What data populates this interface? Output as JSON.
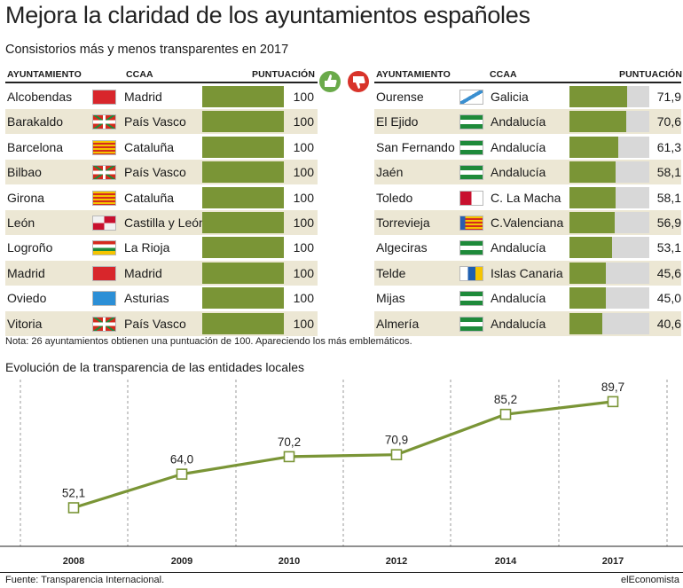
{
  "title": "Mejora la claridad de los ayuntamientos españoles",
  "subtitle": "Consistorios más y menos transparentes en 2017",
  "table_headers": {
    "ayuntamiento": "AYUNTAMIENTO",
    "ccaa": "CCAA",
    "puntuacion": "PUNTUACIÓN"
  },
  "chart_data": [
    {
      "type": "table",
      "title": "Consistorios más transparentes",
      "columns": [
        "AYUNTAMIENTO",
        "CCAA",
        "PUNTUACIÓN"
      ],
      "max": 100,
      "rows": [
        {
          "city": "Alcobendas",
          "ccaa": "Madrid",
          "flag": "madrid-flag",
          "score": 100,
          "label": "100"
        },
        {
          "city": "Barakaldo",
          "ccaa": "País Vasco",
          "flag": "basque-flag",
          "score": 100,
          "label": "100"
        },
        {
          "city": "Barcelona",
          "ccaa": "Cataluña",
          "flag": "catalonia-flag",
          "score": 100,
          "label": "100"
        },
        {
          "city": "Bilbao",
          "ccaa": "País Vasco",
          "flag": "basque-flag",
          "score": 100,
          "label": "100"
        },
        {
          "city": "Girona",
          "ccaa": "Cataluña",
          "flag": "catalonia-flag",
          "score": 100,
          "label": "100"
        },
        {
          "city": "León",
          "ccaa": "Castilla y León",
          "flag": "castilla-leon-flag",
          "score": 100,
          "label": "100"
        },
        {
          "city": "Logroño",
          "ccaa": "La Rioja",
          "flag": "la-rioja-flag",
          "score": 100,
          "label": "100"
        },
        {
          "city": "Madrid",
          "ccaa": "Madrid",
          "flag": "madrid-flag",
          "score": 100,
          "label": "100"
        },
        {
          "city": "Oviedo",
          "ccaa": "Asturias",
          "flag": "asturias-flag",
          "score": 100,
          "label": "100"
        },
        {
          "city": "Vitoria",
          "ccaa": "País Vasco",
          "flag": "basque-flag",
          "score": 100,
          "label": "100"
        }
      ]
    },
    {
      "type": "table",
      "title": "Consistorios menos transparentes",
      "columns": [
        "AYUNTAMIENTO",
        "CCAA",
        "PUNTUACIÓN"
      ],
      "max": 100,
      "rows": [
        {
          "city": "Ourense",
          "ccaa": "Galicia",
          "flag": "galicia-flag",
          "score": 71.9,
          "label": "71,9"
        },
        {
          "city": "El Ejido",
          "ccaa": "Andalucía",
          "flag": "andalucia-flag",
          "score": 70.6,
          "label": "70,6"
        },
        {
          "city": "San Fernando",
          "ccaa": "Andalucía",
          "flag": "andalucia-flag",
          "score": 61.3,
          "label": "61,3"
        },
        {
          "city": "Jaén",
          "ccaa": "Andalucía",
          "flag": "andalucia-flag",
          "score": 58.1,
          "label": "58,1"
        },
        {
          "city": "Toledo",
          "ccaa": "C. La Macha",
          "flag": "castilla-la-mancha-flag",
          "score": 58.1,
          "label": "58,1"
        },
        {
          "city": "Torrevieja",
          "ccaa": "C.Valenciana",
          "flag": "valencia-flag",
          "score": 56.9,
          "label": "56,9"
        },
        {
          "city": "Algeciras",
          "ccaa": "Andalucía",
          "flag": "andalucia-flag",
          "score": 53.1,
          "label": "53,1"
        },
        {
          "city": "Telde",
          "ccaa": "Islas Canaria",
          "flag": "canarias-flag",
          "score": 45.6,
          "label": "45,6"
        },
        {
          "city": "Mijas",
          "ccaa": "Andalucía",
          "flag": "andalucia-flag",
          "score": 45.0,
          "label": "45,0"
        },
        {
          "city": "Almería",
          "ccaa": "Andalucía",
          "flag": "andalucia-flag",
          "score": 40.6,
          "label": "40,6"
        }
      ]
    },
    {
      "type": "line",
      "title": "Evolución de la transparencia de las entidades locales",
      "x": [
        "2008",
        "2009",
        "2010",
        "2012",
        "2014",
        "2017"
      ],
      "y": [
        52.1,
        64.0,
        70.2,
        70.9,
        85.2,
        89.7
      ],
      "labels": [
        "52,1",
        "64,0",
        "70,2",
        "70,9",
        "85,2",
        "89,7"
      ],
      "ylim": [
        40,
        95
      ],
      "grid": "vertical-dashed",
      "legend": "none"
    }
  ],
  "icons": {
    "best": "thumbs-up-icon",
    "worst": "thumbs-down-icon"
  },
  "colors": {
    "bar": "#7a9536",
    "bar_track": "#d8d8d8",
    "row_alt": "#ece7d4",
    "line": "#7a9536",
    "thumb_up": "#6aaa4a",
    "thumb_down": "#d8332a"
  },
  "note": "Nota: 26 ayuntamientos obtienen una puntuación de 100. Apareciendo los más emblemáticos.",
  "source": "Fuente: Transparencia Internacional.",
  "brand": "elEconomista"
}
